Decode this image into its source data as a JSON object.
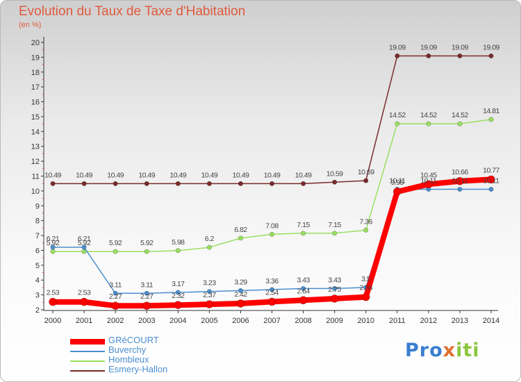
{
  "header": {
    "title": "Evolution du Taux de Taxe d'Habitation",
    "subtitle": "(en %)"
  },
  "logo": {
    "text": "Proxiti"
  },
  "chart_data": {
    "type": "line",
    "title": "Evolution du Taux de Taxe d'Habitation",
    "ylabel": "(en %)",
    "xlabel": "",
    "x": [
      "2000",
      "2001",
      "2002",
      "2003",
      "2004",
      "2005",
      "2006",
      "2007",
      "2008",
      "2009",
      "2010",
      "2011",
      "2012",
      "2013",
      "2014"
    ],
    "ylim": [
      2,
      20
    ],
    "yticks": [
      2,
      3,
      4,
      5,
      6,
      7,
      8,
      9,
      10,
      11,
      12,
      13,
      14,
      15,
      16,
      17,
      18,
      19,
      20
    ],
    "grid": false,
    "legend_position": "bottom-left",
    "series": [
      {
        "name": "GRéCOURT",
        "color": "#ff0000",
        "values": [
          2.53,
          2.53,
          2.27,
          2.27,
          2.32,
          2.37,
          2.42,
          2.54,
          2.64,
          2.75,
          2.86,
          9.95,
          10.45,
          10.66,
          10.77
        ]
      },
      {
        "name": "Buverchy",
        "color": "#4a8fd0",
        "values": [
          6.21,
          6.21,
          3.11,
          3.11,
          3.17,
          3.23,
          3.29,
          3.36,
          3.43,
          3.43,
          3.5,
          10.11,
          10.11,
          10.11,
          10.11
        ]
      },
      {
        "name": "Hombleux",
        "color": "#99e060",
        "values": [
          5.92,
          5.92,
          5.92,
          5.92,
          5.98,
          6.2,
          6.82,
          7.08,
          7.15,
          7.15,
          7.36,
          14.52,
          14.52,
          14.52,
          14.81
        ]
      },
      {
        "name": "Esmery-Hallon",
        "color": "#7a2a2a",
        "values": [
          10.49,
          10.49,
          10.49,
          10.49,
          10.49,
          10.49,
          10.49,
          10.49,
          10.49,
          10.59,
          10.69,
          19.09,
          19.09,
          19.09,
          19.09
        ]
      }
    ]
  }
}
